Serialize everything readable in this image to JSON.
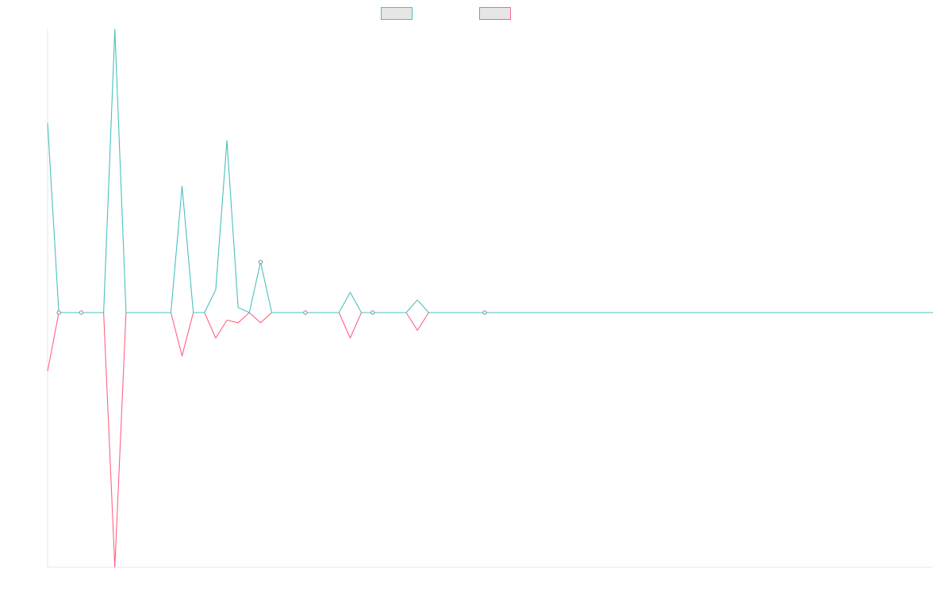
{
  "chart_data": {
    "type": "line",
    "title": "",
    "xlabel": "",
    "ylabel": "",
    "grid": false,
    "legend_position": "top",
    "ylim": [
      -1,
      1.12
    ],
    "x": [
      0,
      1,
      2,
      3,
      4,
      5,
      6,
      7,
      8,
      9,
      10,
      11,
      12,
      13,
      14,
      15,
      16,
      17,
      18,
      19,
      20,
      21,
      22,
      23,
      24,
      25,
      26,
      27,
      28,
      29,
      30,
      31,
      32,
      33,
      34,
      35,
      36,
      37,
      38,
      39,
      40,
      41,
      42,
      43,
      44,
      45,
      46,
      47,
      48,
      49,
      50,
      51,
      52,
      53,
      54,
      55,
      56,
      57,
      58,
      59,
      60,
      61,
      62,
      63,
      64,
      65,
      66,
      67,
      68,
      69,
      70,
      71,
      72,
      73,
      74,
      75,
      76,
      77,
      78,
      79
    ],
    "series": [
      {
        "name": "",
        "color": "#4bc0c0",
        "fill": "#e6e6e6",
        "values": [
          0.75,
          0,
          0,
          0,
          0,
          0,
          1.12,
          0,
          0,
          0,
          0,
          0,
          0.5,
          0,
          0,
          0.09,
          0.68,
          0.02,
          0,
          0.2,
          0,
          0,
          0,
          0,
          0,
          0,
          0,
          0.08,
          0,
          0,
          0,
          0,
          0,
          0.05,
          0,
          0,
          0,
          0,
          0,
          0,
          0,
          0,
          0,
          0,
          0,
          0,
          0,
          0,
          0,
          0,
          0,
          0,
          0,
          0,
          0,
          0,
          0,
          0,
          0,
          0,
          0,
          0,
          0,
          0,
          0,
          0,
          0,
          0,
          0,
          0,
          0,
          0,
          0,
          0,
          0,
          0,
          0,
          0,
          0,
          0
        ]
      },
      {
        "name": "",
        "color": "#ff6384",
        "fill": "#e6e6e6",
        "values": [
          -0.23,
          0,
          0,
          0,
          0,
          0,
          -1,
          0,
          0,
          0,
          0,
          0,
          -0.17,
          0,
          0,
          -0.1,
          -0.03,
          -0.04,
          0,
          -0.04,
          0,
          0,
          0,
          0,
          0,
          0,
          0,
          -0.1,
          0,
          0,
          0,
          0,
          0,
          -0.07,
          0,
          0,
          0,
          0,
          0,
          0,
          0,
          0,
          0,
          0,
          0,
          0,
          0,
          0,
          0,
          0,
          0,
          0,
          0,
          0,
          0,
          0,
          0,
          0,
          0,
          0,
          0,
          0,
          0,
          0,
          0,
          0,
          0,
          0,
          0,
          0,
          0,
          0,
          0,
          0,
          0,
          0,
          0,
          0,
          0,
          0
        ]
      }
    ],
    "point_markers": [
      {
        "series": 0,
        "index": 1
      },
      {
        "series": 0,
        "index": 3
      },
      {
        "series": 0,
        "index": 19
      },
      {
        "series": 0,
        "index": 23
      },
      {
        "series": 0,
        "index": 29
      },
      {
        "series": 0,
        "index": 39
      }
    ]
  }
}
